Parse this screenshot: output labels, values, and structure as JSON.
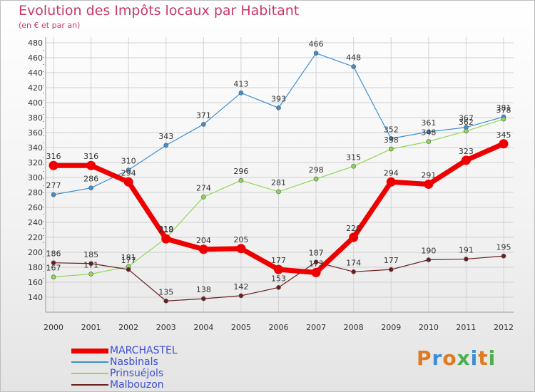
{
  "header": {
    "title": "Evolution des Impôts locaux par Habitant",
    "subtitle": "(en € et par an)"
  },
  "logo": {
    "text": "Proxiti",
    "colors": [
      "#e07a20",
      "#3a8fd6",
      "#e07a20",
      "#4caf50",
      "#3a8fd6",
      "#e07a20",
      "#4caf50"
    ]
  },
  "chart_data": {
    "type": "line",
    "title": "Evolution des Impôts locaux par Habitant",
    "subtitle": "(en € et par an)",
    "xlabel": "",
    "ylabel": "",
    "ylim": [
      120,
      480
    ],
    "yticks": [
      140,
      160,
      180,
      200,
      220,
      240,
      260,
      280,
      300,
      320,
      340,
      360,
      380,
      400,
      420,
      440,
      460,
      480
    ],
    "grid": true,
    "legend_position": "bottom-left",
    "x": [
      "2000",
      "2001",
      "2002",
      "2003",
      "2004",
      "2005",
      "2006",
      "2007",
      "2008",
      "2009",
      "2010",
      "2011",
      "2012"
    ],
    "series": [
      {
        "name": "MARCHASTEL",
        "color": "#ee0000",
        "bold": true,
        "values": [
          316,
          316,
          294,
          218,
          204,
          205,
          177,
          173,
          220,
          294,
          291,
          323,
          345
        ]
      },
      {
        "name": "Nasbinals",
        "color": "#3d8fd1",
        "bold": false,
        "values": [
          277,
          286,
          310,
          343,
          371,
          413,
          393,
          466,
          448,
          352,
          361,
          367,
          381
        ]
      },
      {
        "name": "Prinsuéjols",
        "color": "#8fd855",
        "bold": false,
        "values": [
          167,
          171,
          181,
          219,
          274,
          296,
          281,
          298,
          315,
          338,
          348,
          362,
          378
        ]
      },
      {
        "name": "Malbouzon",
        "color": "#6b1e1e",
        "bold": false,
        "values": [
          186,
          185,
          177,
          135,
          138,
          142,
          153,
          187,
          174,
          177,
          190,
          191,
          195
        ]
      }
    ]
  }
}
